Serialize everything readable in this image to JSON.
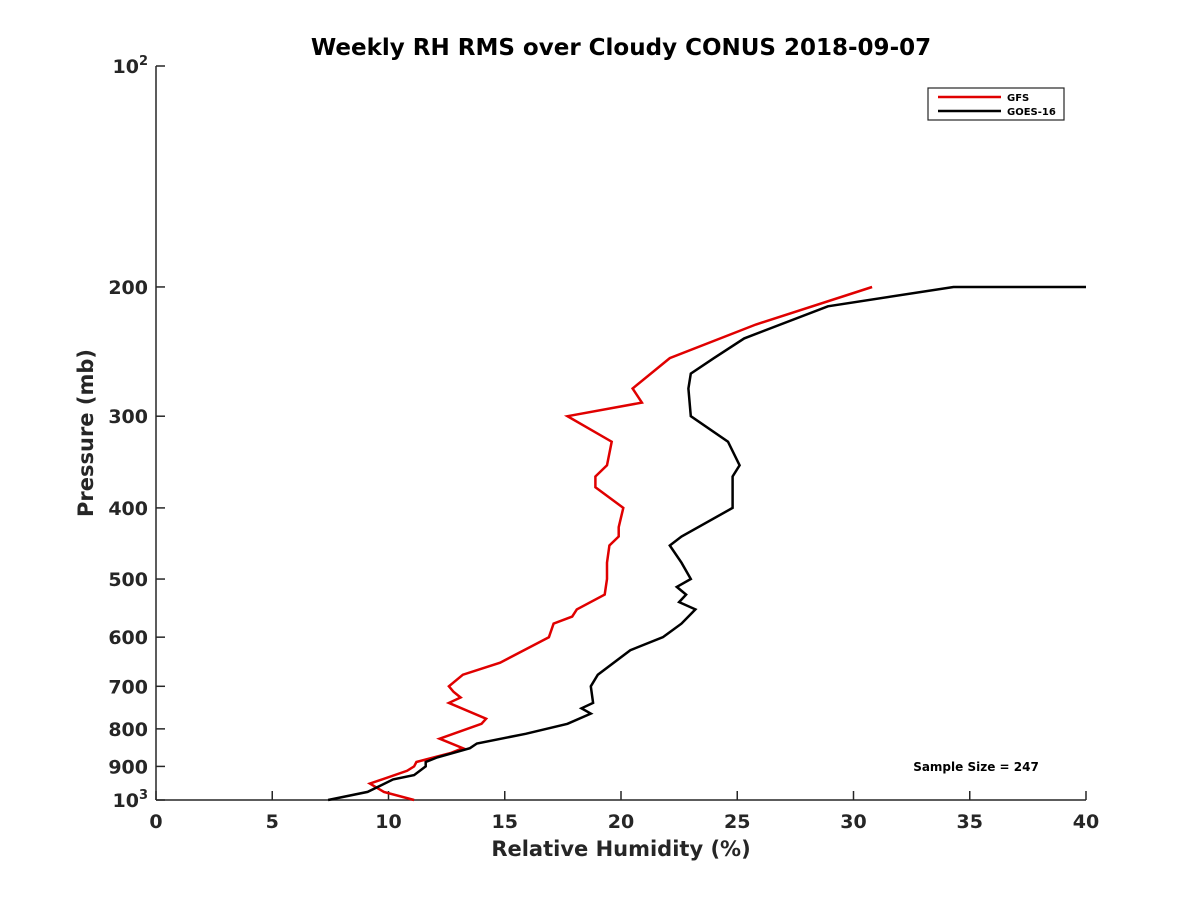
{
  "chart_data": {
    "type": "line",
    "title": "Weekly RH RMS over Cloudy CONUS 2018-09-07",
    "xlabel": "Relative Humidity (%)",
    "ylabel": "Pressure (mb)",
    "xlim": [
      0,
      40
    ],
    "ylim": [
      100,
      1000
    ],
    "y_scale": "log",
    "y_reversed": true,
    "grid": false,
    "legend_position": "top-right",
    "x_ticks": [
      "0",
      "5",
      "10",
      "15",
      "20",
      "25",
      "30",
      "35",
      "40"
    ],
    "y_ticks": [
      {
        "value": 100,
        "base": "10",
        "exp": "2"
      },
      {
        "value": 200,
        "label": "200"
      },
      {
        "value": 300,
        "label": "300"
      },
      {
        "value": 400,
        "label": "400"
      },
      {
        "value": 500,
        "label": "500"
      },
      {
        "value": 600,
        "label": "600"
      },
      {
        "value": 700,
        "label": "700"
      },
      {
        "value": 800,
        "label": "800"
      },
      {
        "value": 900,
        "label": "900"
      },
      {
        "value": 1000,
        "base": "10",
        "exp": "3"
      }
    ],
    "annotation": "Sample Size = 247",
    "series": [
      {
        "name": "GFS",
        "color": "#e00000",
        "points": [
          [
            30.8,
            200
          ],
          [
            25.8,
            225
          ],
          [
            22.1,
            250
          ],
          [
            20.5,
            275
          ],
          [
            20.9,
            287.5
          ],
          [
            17.7,
            300
          ],
          [
            19.6,
            325
          ],
          [
            19.4,
            350
          ],
          [
            18.9,
            362.5
          ],
          [
            18.9,
            375
          ],
          [
            20.1,
            400
          ],
          [
            19.9,
            425
          ],
          [
            19.9,
            437.5
          ],
          [
            19.5,
            450
          ],
          [
            19.4,
            475
          ],
          [
            19.4,
            500
          ],
          [
            19.3,
            525
          ],
          [
            18.1,
            550
          ],
          [
            17.9,
            562.5
          ],
          [
            17.1,
            575
          ],
          [
            16.9,
            600
          ],
          [
            14.8,
            650
          ],
          [
            13.2,
            675
          ],
          [
            12.6,
            700
          ],
          [
            12.8,
            712.5
          ],
          [
            13.1,
            725
          ],
          [
            12.6,
            737.5
          ],
          [
            14.2,
            775
          ],
          [
            14.0,
            787.5
          ],
          [
            12.2,
            825
          ],
          [
            13.2,
            850
          ],
          [
            12.7,
            862.5
          ],
          [
            11.2,
            887.5
          ],
          [
            11.1,
            900
          ],
          [
            10.8,
            912.5
          ],
          [
            9.2,
            950
          ],
          [
            9.8,
            975
          ],
          [
            11.1,
            1000
          ]
        ]
      },
      {
        "name": "GOES-16",
        "color": "#000000",
        "points": [
          [
            40.0,
            200
          ],
          [
            34.3,
            200
          ],
          [
            28.9,
            212.5
          ],
          [
            25.3,
            235
          ],
          [
            24.0,
            250
          ],
          [
            23.0,
            262.5
          ],
          [
            22.9,
            275
          ],
          [
            23.0,
            300
          ],
          [
            24.6,
            325
          ],
          [
            25.1,
            350
          ],
          [
            24.8,
            362.5
          ],
          [
            24.8,
            375
          ],
          [
            24.8,
            400
          ],
          [
            22.6,
            437.5
          ],
          [
            22.1,
            450
          ],
          [
            22.6,
            475
          ],
          [
            23.0,
            500
          ],
          [
            22.4,
            512.5
          ],
          [
            22.8,
            525
          ],
          [
            22.5,
            537.5
          ],
          [
            23.2,
            550
          ],
          [
            22.6,
            575
          ],
          [
            21.8,
            600
          ],
          [
            20.4,
            625
          ],
          [
            19.0,
            675
          ],
          [
            18.7,
            700
          ],
          [
            18.8,
            737.5
          ],
          [
            18.3,
            750
          ],
          [
            18.7,
            762.5
          ],
          [
            17.7,
            787.5
          ],
          [
            15.9,
            812.5
          ],
          [
            13.8,
            837.5
          ],
          [
            13.5,
            850
          ],
          [
            12.1,
            875
          ],
          [
            11.6,
            887.5
          ],
          [
            11.6,
            900
          ],
          [
            11.1,
            925
          ],
          [
            10.2,
            937.5
          ],
          [
            9.1,
            975
          ],
          [
            7.4,
            1000
          ]
        ]
      }
    ]
  }
}
